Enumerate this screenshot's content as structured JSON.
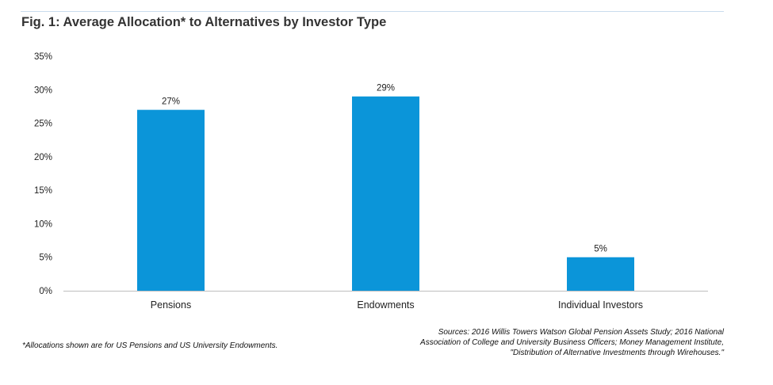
{
  "title": "Fig. 1: Average Allocation* to Alternatives by Investor Type",
  "footnote": "*Allocations shown are for US Pensions and US University Endowments.",
  "sources": [
    "Sources: 2016 Willis Towers Watson Global Pension Assets Study; 2016 National",
    "Association of College and University Business Officers; Money Management Institute,",
    "\"Distribution of Alternative Investments through Wirehouses.\""
  ],
  "colors": {
    "bar": "#0b95d9",
    "axis": "#bfbfbf",
    "text": "#222222"
  },
  "chart_data": {
    "type": "bar",
    "title": "Fig. 1: Average Allocation* to Alternatives by Investor Type",
    "xlabel": "",
    "ylabel": "",
    "categories": [
      "Pensions",
      "Endowments",
      "Individual Investors"
    ],
    "values": [
      27,
      29,
      5
    ],
    "data_labels": [
      "27%",
      "29%",
      "5%"
    ],
    "ylim": [
      0,
      35
    ],
    "yticks": [
      0,
      5,
      10,
      15,
      20,
      25,
      30,
      35
    ],
    "ytick_labels": [
      "0%",
      "5%",
      "10%",
      "15%",
      "20%",
      "25%",
      "30%",
      "35%"
    ],
    "grid": false,
    "legend": "none"
  }
}
